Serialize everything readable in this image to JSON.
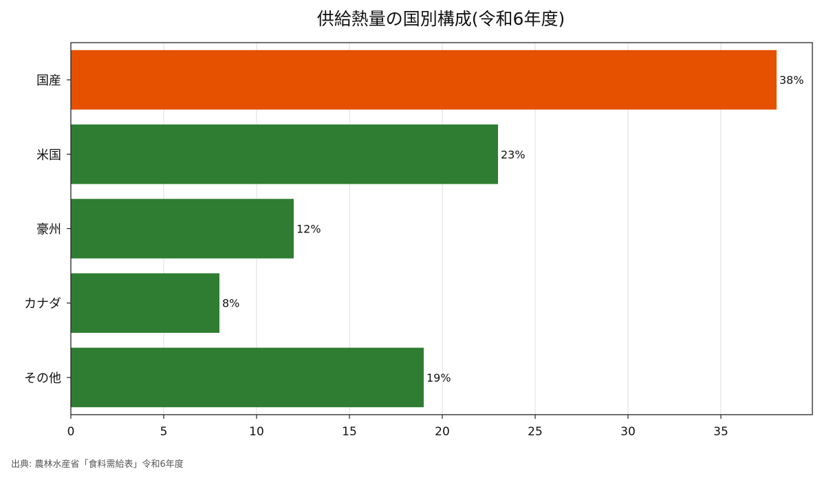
{
  "chart_data": {
    "type": "bar",
    "orientation": "horizontal",
    "title": "供給熱量の国別構成(令和6年度)",
    "categories": [
      "国産",
      "米国",
      "豪州",
      "カナダ",
      "その他"
    ],
    "values": [
      38,
      23,
      12,
      8,
      19
    ],
    "value_labels": [
      "38%",
      "23%",
      "12%",
      "8%",
      "19%"
    ],
    "bar_colors": [
      "#e65100",
      "#2e7d32",
      "#2e7d32",
      "#2e7d32",
      "#2e7d32"
    ],
    "xlim": [
      0,
      40
    ],
    "xticks": [
      0,
      5,
      10,
      15,
      20,
      25,
      30,
      35
    ],
    "xtick_labels": [
      "0",
      "5",
      "10",
      "15",
      "20",
      "25",
      "30",
      "35"
    ],
    "grid": "vertical",
    "xlabel": "",
    "ylabel": ""
  },
  "source_note": "出典: 農林水産省「食料需給表」令和6年度"
}
